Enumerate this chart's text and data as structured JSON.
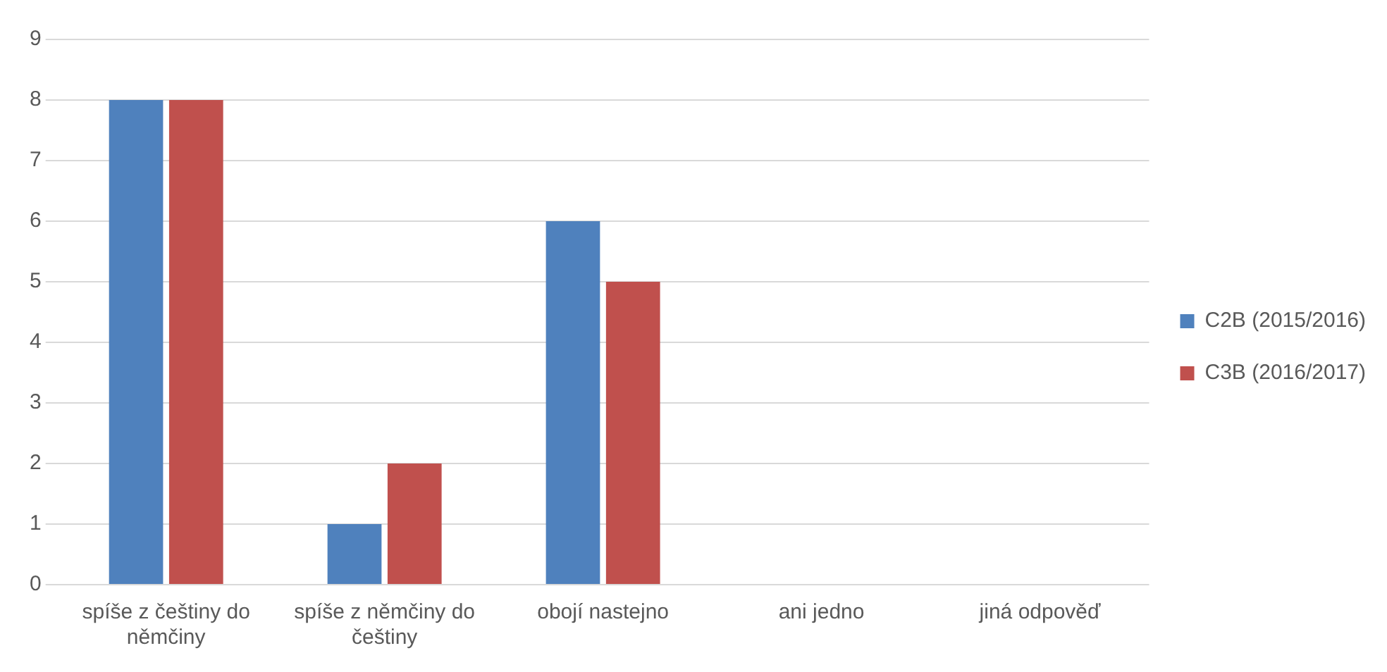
{
  "chart_data": {
    "type": "bar",
    "categories": [
      "spíše z češtiny do němčiny",
      "spíše z němčiny do češtiny",
      "obojí nastejno",
      "ani jedno",
      "jiná odpověď"
    ],
    "series": [
      {
        "name": "C2B (2015/2016)",
        "color": "#4f81bd",
        "values": [
          8,
          1,
          6,
          0,
          0
        ]
      },
      {
        "name": "C3B (2016/2017)",
        "color": "#c0504d",
        "values": [
          8,
          2,
          5,
          0,
          0
        ]
      }
    ],
    "ylim": [
      0,
      9
    ],
    "yticks": [
      0,
      1,
      2,
      3,
      4,
      5,
      6,
      7,
      8,
      9
    ],
    "grid": "y",
    "legend": "right"
  }
}
